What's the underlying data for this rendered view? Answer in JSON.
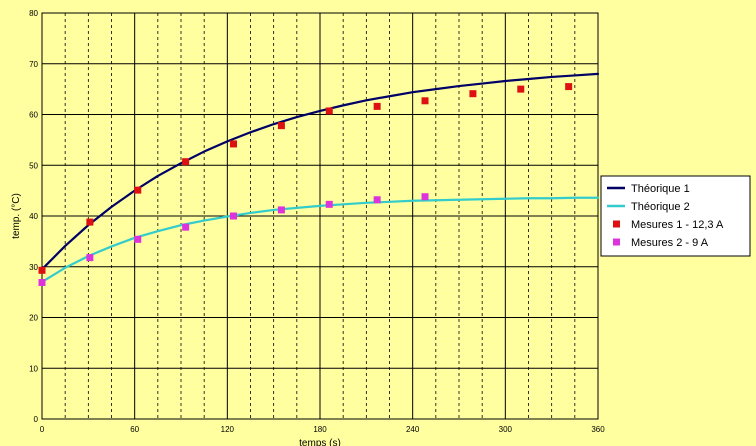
{
  "chart_data": {
    "type": "scatter",
    "title": "",
    "ylabel": "temp. (°C)",
    "xlabel": "temps (s)",
    "xlim": [
      0,
      360
    ],
    "ylim": [
      0,
      80
    ],
    "x_ticks": [
      0,
      60,
      120,
      180,
      240,
      300,
      360
    ],
    "y_ticks": [
      0,
      10,
      20,
      30,
      40,
      50,
      60,
      70,
      80
    ],
    "x_minor_step": 15,
    "grid": true,
    "legend_position": "right",
    "series": [
      {
        "name": "Théorique 1",
        "kind": "line",
        "color": "#000066",
        "x": [
          0,
          15,
          30,
          45,
          60,
          75,
          90,
          105,
          120,
          135,
          150,
          165,
          180,
          195,
          210,
          225,
          240,
          255,
          270,
          285,
          300,
          315,
          330,
          345,
          360
        ],
        "y": [
          29.5,
          34.1,
          38.2,
          41.8,
          45.0,
          47.9,
          50.4,
          52.7,
          54.7,
          56.5,
          58.1,
          59.5,
          60.7,
          61.8,
          62.8,
          63.6,
          64.4,
          65.0,
          65.6,
          66.1,
          66.6,
          67.0,
          67.4,
          67.7,
          68.0
        ]
      },
      {
        "name": "Théorique 2",
        "kind": "line",
        "color": "#33CCCC",
        "x": [
          0,
          15,
          30,
          45,
          60,
          75,
          90,
          105,
          120,
          135,
          150,
          165,
          180,
          195,
          210,
          225,
          240,
          255,
          270,
          285,
          300,
          315,
          330,
          345,
          360
        ],
        "y": [
          27.0,
          29.8,
          32.1,
          34.0,
          35.7,
          37.0,
          38.2,
          39.1,
          39.9,
          40.6,
          41.2,
          41.6,
          42.0,
          42.3,
          42.6,
          42.8,
          43.0,
          43.1,
          43.2,
          43.3,
          43.4,
          43.5,
          43.5,
          43.6,
          43.6
        ]
      },
      {
        "name": "Mesures 1 - 12,3 A",
        "kind": "markers",
        "color": "#DD1111",
        "x": [
          0,
          31,
          62,
          93,
          124,
          155,
          186,
          217,
          248,
          279,
          310,
          341
        ],
        "y": [
          29.3,
          38.8,
          45.1,
          50.7,
          54.2,
          57.8,
          60.7,
          61.6,
          62.7,
          64.1,
          65.0,
          65.5
        ]
      },
      {
        "name": "Mesures 2 - 9 A",
        "kind": "markers",
        "color": "#DD33DD",
        "x": [
          0,
          31,
          62,
          93,
          124,
          155,
          186,
          217,
          248
        ],
        "y": [
          26.9,
          31.8,
          35.4,
          37.8,
          40.0,
          41.2,
          42.3,
          43.2,
          43.8
        ]
      }
    ]
  }
}
